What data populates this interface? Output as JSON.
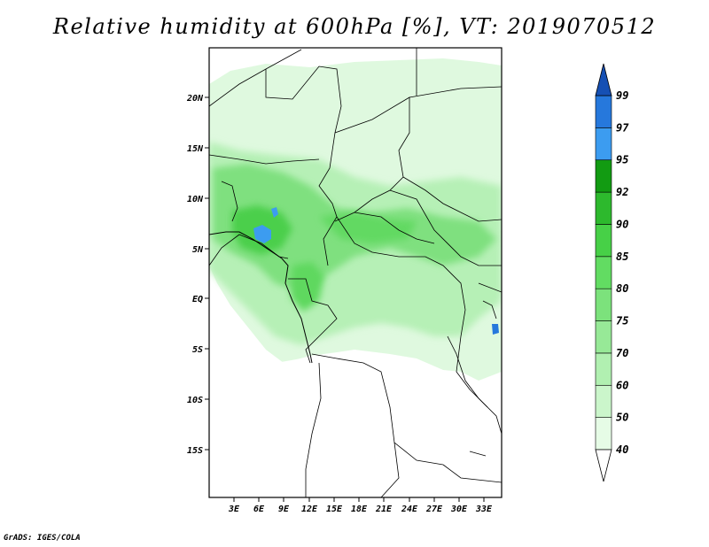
{
  "title": "Relative humidity at 600hPa [%], VT: 2019070512",
  "credit": "GrADS: IGES/COLA",
  "map": {
    "lat_ticks": [
      "20N",
      "15N",
      "10N",
      "5N",
      "EQ",
      "5S",
      "10S",
      "15S"
    ],
    "lon_ticks": [
      "3E",
      "6E",
      "9E",
      "12E",
      "15E",
      "18E",
      "21E",
      "24E",
      "27E",
      "30E",
      "33E"
    ]
  },
  "colorbar": {
    "levels": [
      "40",
      "50",
      "60",
      "70",
      "75",
      "80",
      "85",
      "90",
      "92",
      "95",
      "97",
      "99"
    ],
    "colors": [
      "#ffffff",
      "#e6fce6",
      "#cbf6cb",
      "#b1f0b1",
      "#97e997",
      "#7ce27c",
      "#62dc62",
      "#47d047",
      "#2db92d",
      "#129b12",
      "#3c9cf0",
      "#2678dc",
      "#1650b4"
    ]
  }
}
